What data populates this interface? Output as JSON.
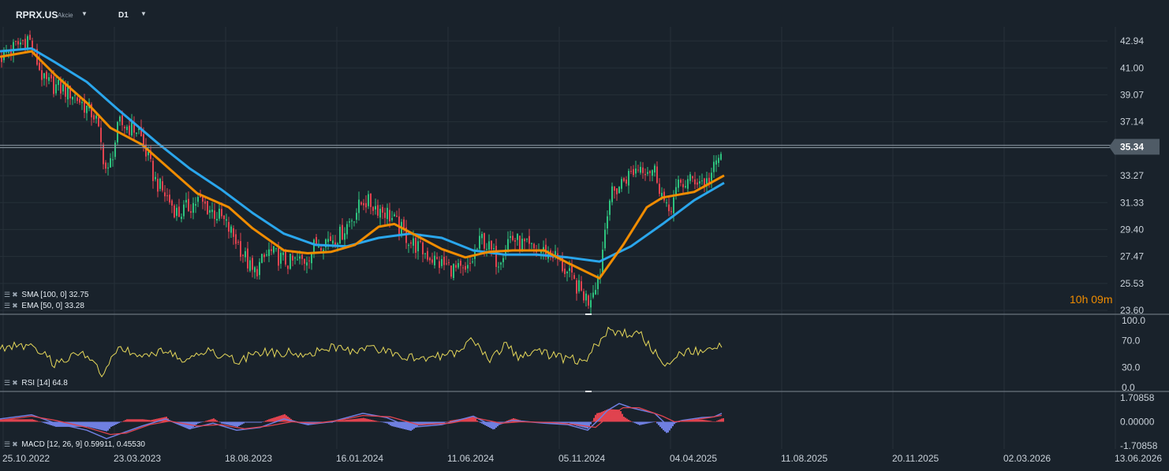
{
  "toolbar": {
    "symbol": "RPRX.US",
    "symbol_type": "Akcie",
    "timeframe": "D1"
  },
  "indicators": {
    "sma": "SMA [100, 0] 32.75",
    "ema": "EMA [50, 0] 33.28",
    "rsi": "RSI [14] 64.8",
    "macd": "MACD [12, 26, 9] 0.59911, 0.45530"
  },
  "countdown": "10h 09m",
  "current_price": "35.34",
  "colors": {
    "background": "#19222b",
    "grid": "#263039",
    "candle_up": "#2ec27e",
    "candle_down": "#e0434f",
    "sma": "#2aa6ec",
    "ema": "#f08c00",
    "rsi": "#e6d85a",
    "macd_line": "#6f7fe0",
    "signal_line": "#e0434f",
    "hist_pos": "#e0434f",
    "hist_neg": "#6f7fe0"
  },
  "chart_data": [
    {
      "type": "candlestick",
      "name": "RPRX.US D1",
      "x_labels": [
        "25.10.2022",
        "23.03.2023",
        "18.08.2023",
        "16.01.2024",
        "11.06.2024",
        "05.11.2024",
        "04.04.2025",
        "11.08.2025",
        "20.11.2025",
        "02.03.2026",
        "13.06.2026"
      ],
      "y_ticks": [
        "42.94",
        "41.00",
        "39.07",
        "37.14",
        "35.34",
        "33.27",
        "31.33",
        "29.40",
        "27.47",
        "25.53",
        "23.60"
      ],
      "ylim": [
        23.6,
        42.94
      ],
      "last_price": 35.34,
      "close_path": [
        [
          0,
          41.8
        ],
        [
          35,
          43.2
        ],
        [
          55,
          40.0
        ],
        [
          90,
          39.2
        ],
        [
          120,
          37.5
        ],
        [
          135,
          33.2
        ],
        [
          150,
          37.0
        ],
        [
          175,
          36.5
        ],
        [
          195,
          33.0
        ],
        [
          225,
          30.5
        ],
        [
          250,
          31.5
        ],
        [
          280,
          30.2
        ],
        [
          300,
          28.5
        ],
        [
          320,
          26.2
        ],
        [
          340,
          27.8
        ],
        [
          365,
          27.0
        ],
        [
          385,
          27.2
        ],
        [
          400,
          28.4
        ],
        [
          430,
          29.0
        ],
        [
          460,
          31.5
        ],
        [
          490,
          30.6
        ],
        [
          520,
          28.5
        ],
        [
          555,
          27.0
        ],
        [
          590,
          26.2
        ],
        [
          610,
          28.8
        ],
        [
          630,
          27.1
        ],
        [
          645,
          28.9
        ],
        [
          670,
          28.0
        ],
        [
          700,
          27.7
        ],
        [
          725,
          25.7
        ],
        [
          745,
          24.3
        ],
        [
          760,
          26.5
        ],
        [
          770,
          31.5
        ],
        [
          790,
          33.0
        ],
        [
          810,
          34.0
        ],
        [
          830,
          33.6
        ],
        [
          845,
          30.5
        ],
        [
          860,
          32.6
        ],
        [
          880,
          33.0
        ],
        [
          895,
          32.8
        ],
        [
          905,
          33.8
        ],
        [
          915,
          35.2
        ]
      ],
      "sma_100": [
        [
          0,
          42.2
        ],
        [
          40,
          42.4
        ],
        [
          70,
          41.4
        ],
        [
          110,
          40.0
        ],
        [
          150,
          38.0
        ],
        [
          200,
          35.6
        ],
        [
          240,
          33.8
        ],
        [
          280,
          32.3
        ],
        [
          320,
          30.6
        ],
        [
          360,
          29.1
        ],
        [
          400,
          28.3
        ],
        [
          440,
          28.2
        ],
        [
          480,
          28.8
        ],
        [
          520,
          29.1
        ],
        [
          560,
          28.8
        ],
        [
          600,
          27.9
        ],
        [
          640,
          27.6
        ],
        [
          680,
          27.6
        ],
        [
          720,
          27.4
        ],
        [
          760,
          27.1
        ],
        [
          800,
          28.2
        ],
        [
          840,
          29.8
        ],
        [
          880,
          31.5
        ],
        [
          918,
          32.75
        ]
      ],
      "ema_50": [
        [
          0,
          41.8
        ],
        [
          40,
          42.2
        ],
        [
          70,
          40.5
        ],
        [
          110,
          38.5
        ],
        [
          140,
          36.7
        ],
        [
          180,
          35.5
        ],
        [
          210,
          34.0
        ],
        [
          250,
          32.0
        ],
        [
          290,
          31.0
        ],
        [
          320,
          29.5
        ],
        [
          360,
          27.9
        ],
        [
          390,
          27.7
        ],
        [
          420,
          27.8
        ],
        [
          450,
          28.3
        ],
        [
          480,
          29.6
        ],
        [
          500,
          29.8
        ],
        [
          520,
          29.2
        ],
        [
          560,
          28.0
        ],
        [
          590,
          27.4
        ],
        [
          620,
          27.8
        ],
        [
          650,
          27.9
        ],
        [
          690,
          27.9
        ],
        [
          720,
          27.0
        ],
        [
          760,
          25.9
        ],
        [
          790,
          28.3
        ],
        [
          820,
          31.0
        ],
        [
          840,
          31.7
        ],
        [
          880,
          32.1
        ],
        [
          918,
          33.28
        ]
      ]
    },
    {
      "type": "line",
      "name": "RSI [14]",
      "y_ticks": [
        "100.0",
        "70.0",
        "30.0",
        "0.0"
      ],
      "ylim": [
        0,
        100
      ],
      "last_value": 64.8,
      "path": [
        [
          0,
          55
        ],
        [
          20,
          65
        ],
        [
          45,
          58
        ],
        [
          70,
          35
        ],
        [
          100,
          54
        ],
        [
          130,
          22
        ],
        [
          150,
          60
        ],
        [
          180,
          46
        ],
        [
          210,
          56
        ],
        [
          235,
          40
        ],
        [
          265,
          55
        ],
        [
          300,
          40
        ],
        [
          330,
          53
        ],
        [
          360,
          52
        ],
        [
          390,
          52
        ],
        [
          420,
          60
        ],
        [
          450,
          54
        ],
        [
          470,
          60
        ],
        [
          500,
          52
        ],
        [
          520,
          45
        ],
        [
          550,
          46
        ],
        [
          580,
          50
        ],
        [
          600,
          72
        ],
        [
          620,
          38
        ],
        [
          640,
          64
        ],
        [
          660,
          44
        ],
        [
          680,
          54
        ],
        [
          710,
          44
        ],
        [
          740,
          40
        ],
        [
          760,
          70
        ],
        [
          770,
          86
        ],
        [
          790,
          80
        ],
        [
          810,
          82
        ],
        [
          825,
          60
        ],
        [
          840,
          35
        ],
        [
          855,
          45
        ],
        [
          870,
          55
        ],
        [
          890,
          54
        ],
        [
          905,
          58
        ],
        [
          915,
          64.8
        ]
      ]
    },
    {
      "type": "line",
      "name": "MACD [12, 26, 9]",
      "y_ticks": [
        "1.70858",
        "0.00000",
        "-1.70858"
      ],
      "ylim": [
        -1.70858,
        1.70858
      ],
      "macd": 0.59911,
      "signal": 0.4553,
      "macd_path": [
        [
          0,
          0.2
        ],
        [
          40,
          0.5
        ],
        [
          70,
          -0.1
        ],
        [
          110,
          -0.6
        ],
        [
          135,
          -1.2
        ],
        [
          150,
          -0.9
        ],
        [
          180,
          -0.3
        ],
        [
          210,
          0.2
        ],
        [
          240,
          -0.5
        ],
        [
          270,
          -0.1
        ],
        [
          300,
          -0.6
        ],
        [
          330,
          -0.4
        ],
        [
          360,
          0.2
        ],
        [
          390,
          -0.2
        ],
        [
          420,
          0.0
        ],
        [
          460,
          0.6
        ],
        [
          490,
          0.3
        ],
        [
          520,
          -0.4
        ],
        [
          560,
          -0.2
        ],
        [
          600,
          0.4
        ],
        [
          625,
          -0.3
        ],
        [
          650,
          0.1
        ],
        [
          690,
          -0.1
        ],
        [
          720,
          -0.2
        ],
        [
          745,
          -0.6
        ],
        [
          760,
          0.2
        ],
        [
          770,
          0.8
        ],
        [
          785,
          1.3
        ],
        [
          800,
          1.0
        ],
        [
          830,
          0.6
        ],
        [
          845,
          -0.2
        ],
        [
          865,
          0.1
        ],
        [
          890,
          0.3
        ],
        [
          905,
          0.35
        ],
        [
          915,
          0.6
        ]
      ],
      "signal_path": [
        [
          0,
          0.1
        ],
        [
          40,
          0.4
        ],
        [
          70,
          0.1
        ],
        [
          110,
          -0.4
        ],
        [
          140,
          -0.9
        ],
        [
          160,
          -0.8
        ],
        [
          190,
          -0.2
        ],
        [
          215,
          0.05
        ],
        [
          250,
          -0.3
        ],
        [
          280,
          -0.2
        ],
        [
          310,
          -0.5
        ],
        [
          340,
          -0.3
        ],
        [
          370,
          0.0
        ],
        [
          400,
          -0.1
        ],
        [
          430,
          0.1
        ],
        [
          460,
          0.45
        ],
        [
          495,
          0.35
        ],
        [
          530,
          -0.2
        ],
        [
          570,
          -0.1
        ],
        [
          605,
          0.25
        ],
        [
          635,
          -0.1
        ],
        [
          660,
          0.0
        ],
        [
          700,
          -0.05
        ],
        [
          730,
          -0.2
        ],
        [
          755,
          -0.4
        ],
        [
          770,
          0.3
        ],
        [
          790,
          1.0
        ],
        [
          810,
          1.0
        ],
        [
          840,
          0.4
        ],
        [
          855,
          0.0
        ],
        [
          875,
          0.1
        ],
        [
          900,
          0.3
        ],
        [
          915,
          0.46
        ]
      ]
    }
  ]
}
